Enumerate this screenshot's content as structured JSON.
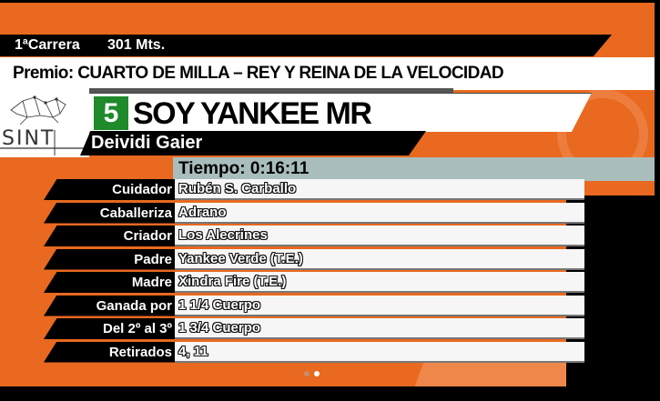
{
  "race": {
    "number_label": "1ªCarrera",
    "distance": "301 Mts."
  },
  "premio": "Premio: CUARTO DE MILLA – REY Y REINA DE LA VELOCIDAD",
  "logo": {
    "text": "SINT"
  },
  "horse": {
    "number": "5",
    "name": "SOY YANKEE MR"
  },
  "jockey": "Deividi Gaier",
  "tiempo": "Tiempo: 0:16:11",
  "details": [
    {
      "label": "Cuidador",
      "value": "Rubén S. Carballo"
    },
    {
      "label": "Caballeriza",
      "value": "Adrano"
    },
    {
      "label": "Criador",
      "value": "Los Alecrines"
    },
    {
      "label": "Padre",
      "value": "Yankee Verde (T.E.)"
    },
    {
      "label": "Madre",
      "value": "Xindra Fire (T.E.)"
    },
    {
      "label": "Ganada por",
      "value": "1 1/4 Cuerpo"
    },
    {
      "label": "Del 2º al 3º",
      "value": "1 3/4 Cuerpo"
    },
    {
      "label": "Retirados",
      "value": "4, 11"
    }
  ],
  "pagination": {
    "count": 2,
    "active": 2
  },
  "colors": {
    "orange": "#e8691f",
    "green": "#1e8a2a",
    "time_bar": "#a9bebc"
  }
}
